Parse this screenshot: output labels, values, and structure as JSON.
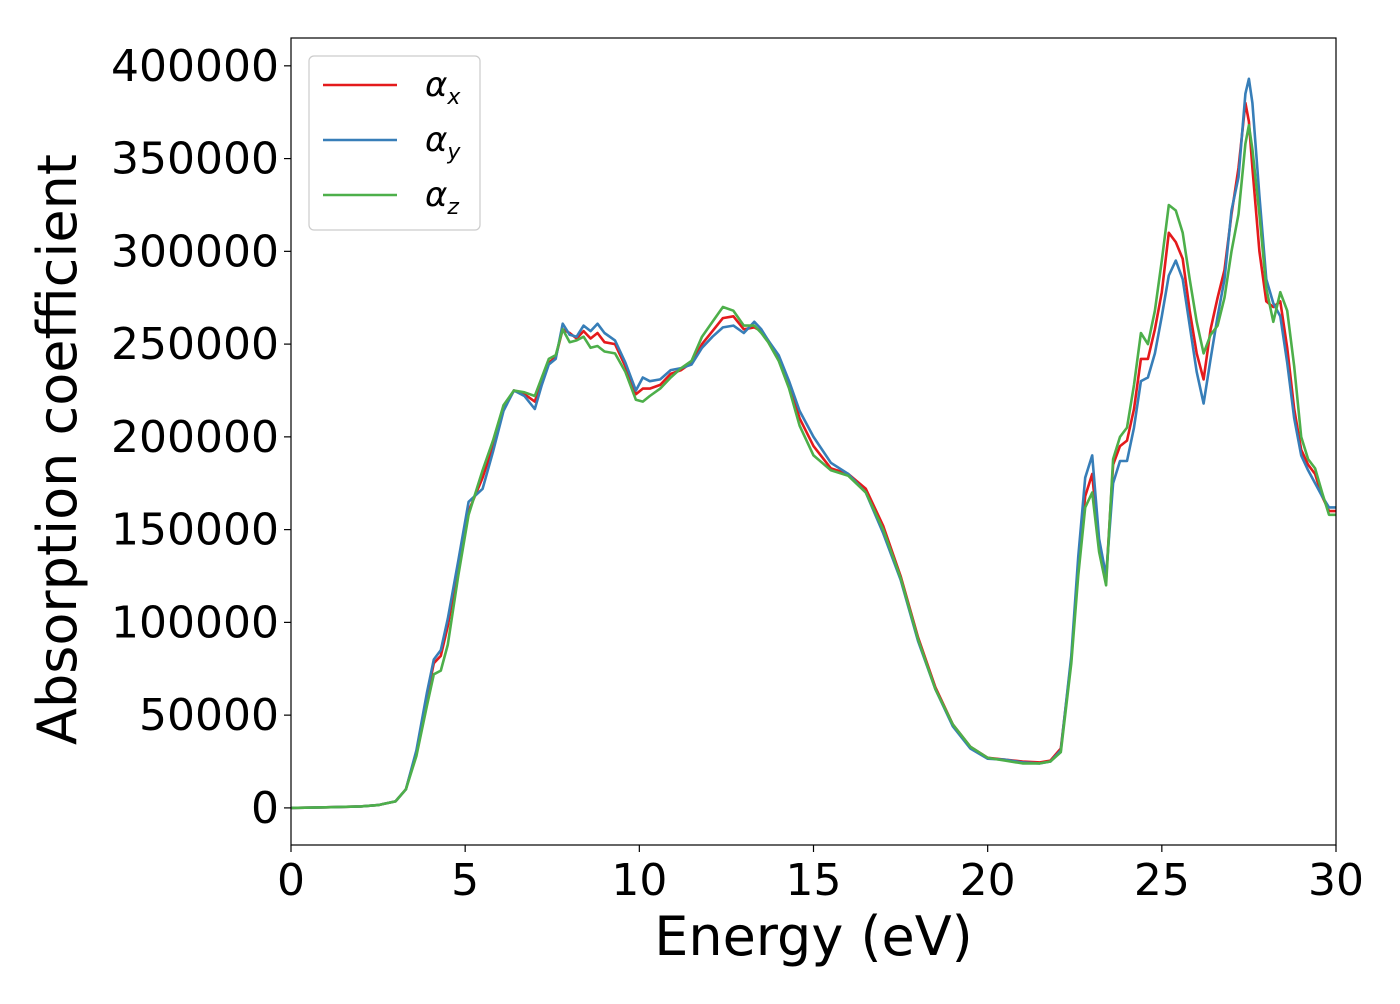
{
  "chart_data": {
    "type": "line",
    "title": "",
    "xlabel": "Energy (eV)",
    "ylabel": "Absorption coefficient",
    "xlim": [
      0,
      30
    ],
    "ylim": [
      -20000,
      415000
    ],
    "x_ticks": [
      0,
      5,
      10,
      15,
      20,
      25,
      30
    ],
    "y_ticks": [
      0,
      50000,
      100000,
      150000,
      200000,
      250000,
      300000,
      350000,
      400000
    ],
    "grid": false,
    "legend_position": "top-left",
    "series": [
      {
        "name": "α_x",
        "color": "#e41a1c",
        "x": [
          0,
          1,
          2,
          2.5,
          3,
          3.3,
          3.6,
          3.9,
          4.1,
          4.3,
          4.5,
          4.8,
          5.1,
          5.5,
          5.8,
          6.1,
          6.4,
          6.7,
          7.0,
          7.2,
          7.4,
          7.6,
          7.8,
          8.0,
          8.2,
          8.4,
          8.6,
          8.8,
          9.0,
          9.3,
          9.6,
          9.9,
          10.1,
          10.3,
          10.6,
          10.9,
          11.2,
          11.5,
          11.8,
          12.1,
          12.4,
          12.7,
          13.0,
          13.3,
          13.5,
          13.7,
          14.0,
          14.3,
          14.6,
          15.0,
          15.5,
          16.0,
          16.5,
          17.0,
          17.5,
          18.0,
          18.5,
          19.0,
          19.5,
          20.0,
          20.5,
          21.0,
          21.5,
          21.8,
          22.1,
          22.4,
          22.6,
          22.8,
          23.0,
          23.2,
          23.4,
          23.6,
          23.8,
          24.0,
          24.2,
          24.4,
          24.6,
          24.8,
          25.0,
          25.2,
          25.4,
          25.6,
          25.8,
          26.0,
          26.2,
          26.4,
          26.6,
          26.8,
          27.0,
          27.2,
          27.4,
          27.5,
          27.6,
          27.8,
          28.0,
          28.2,
          28.4,
          28.6,
          28.8,
          29.0,
          29.2,
          29.4,
          29.6,
          29.8,
          30.0
        ],
        "y": [
          0,
          300,
          800,
          1500,
          3500,
          10000,
          30000,
          60000,
          78000,
          82000,
          98000,
          130000,
          160000,
          178000,
          195000,
          215000,
          225000,
          223000,
          219000,
          230000,
          240000,
          243000,
          258000,
          256000,
          253000,
          257000,
          253000,
          256000,
          251000,
          250000,
          238000,
          223000,
          226000,
          226000,
          228000,
          234000,
          236000,
          240000,
          250000,
          257000,
          264000,
          265000,
          258000,
          259000,
          257000,
          252000,
          242000,
          228000,
          210000,
          195000,
          183000,
          180000,
          172000,
          152000,
          125000,
          92000,
          65000,
          45000,
          33000,
          27000,
          26000,
          25000,
          24500,
          25500,
          32000,
          80000,
          130000,
          168000,
          180000,
          140000,
          123000,
          185000,
          195000,
          198000,
          215000,
          242000,
          242000,
          258000,
          278000,
          310000,
          305000,
          296000,
          268000,
          245000,
          231000,
          258000,
          275000,
          290000,
          320000,
          345000,
          380000,
          370000,
          345000,
          300000,
          273000,
          270000,
          273000,
          248000,
          215000,
          193000,
          185000,
          180000,
          168000,
          160000,
          160000
        ]
      },
      {
        "name": "α_y",
        "color": "#377eb8",
        "x": [
          0,
          1,
          2,
          2.5,
          3,
          3.3,
          3.6,
          3.9,
          4.1,
          4.3,
          4.5,
          4.8,
          5.1,
          5.5,
          5.8,
          6.1,
          6.4,
          6.7,
          7.0,
          7.2,
          7.4,
          7.6,
          7.8,
          8.0,
          8.2,
          8.4,
          8.6,
          8.8,
          9.0,
          9.3,
          9.6,
          9.9,
          10.1,
          10.3,
          10.6,
          10.9,
          11.2,
          11.5,
          11.8,
          12.1,
          12.4,
          12.7,
          13.0,
          13.3,
          13.5,
          13.7,
          14.0,
          14.3,
          14.6,
          15.0,
          15.5,
          16.0,
          16.5,
          17.0,
          17.5,
          18.0,
          18.5,
          19.0,
          19.5,
          20.0,
          20.5,
          21.0,
          21.5,
          21.8,
          22.1,
          22.4,
          22.6,
          22.8,
          23.0,
          23.2,
          23.4,
          23.6,
          23.8,
          24.0,
          24.2,
          24.4,
          24.6,
          24.8,
          25.0,
          25.2,
          25.4,
          25.6,
          25.8,
          26.0,
          26.2,
          26.4,
          26.6,
          26.8,
          27.0,
          27.2,
          27.4,
          27.5,
          27.6,
          27.8,
          28.0,
          28.2,
          28.4,
          28.6,
          28.8,
          29.0,
          29.2,
          29.4,
          29.6,
          29.8,
          30.0
        ],
        "y": [
          0,
          300,
          800,
          1500,
          3500,
          10000,
          31000,
          62000,
          80000,
          85000,
          102000,
          133000,
          165000,
          172000,
          192000,
          214000,
          225000,
          222000,
          215000,
          228000,
          239000,
          242000,
          261000,
          255000,
          254000,
          260000,
          257000,
          261000,
          256000,
          252000,
          240000,
          225000,
          232000,
          230000,
          231000,
          236000,
          237000,
          239000,
          248000,
          254000,
          259000,
          260000,
          256000,
          262000,
          258000,
          252000,
          244000,
          230000,
          214000,
          200000,
          186000,
          180000,
          170000,
          148000,
          123000,
          90000,
          64000,
          44000,
          32000,
          26500,
          26000,
          24500,
          24000,
          25000,
          31000,
          82000,
          135000,
          178000,
          190000,
          145000,
          125000,
          175000,
          187000,
          187000,
          205000,
          230000,
          232000,
          245000,
          265000,
          287000,
          295000,
          285000,
          260000,
          235000,
          218000,
          242000,
          265000,
          285000,
          322000,
          340000,
          385000,
          393000,
          380000,
          330000,
          285000,
          272000,
          265000,
          240000,
          210000,
          190000,
          182000,
          175000,
          168000,
          162000,
          162000
        ]
      },
      {
        "name": "α_z",
        "color": "#4daf4a",
        "x": [
          0,
          1,
          2,
          2.5,
          3,
          3.3,
          3.6,
          3.9,
          4.1,
          4.3,
          4.5,
          4.8,
          5.1,
          5.5,
          5.8,
          6.1,
          6.4,
          6.7,
          7.0,
          7.2,
          7.4,
          7.6,
          7.8,
          8.0,
          8.2,
          8.4,
          8.6,
          8.8,
          9.0,
          9.3,
          9.6,
          9.9,
          10.1,
          10.3,
          10.6,
          10.9,
          11.2,
          11.5,
          11.8,
          12.1,
          12.4,
          12.7,
          13.0,
          13.3,
          13.5,
          13.7,
          14.0,
          14.3,
          14.6,
          15.0,
          15.5,
          16.0,
          16.5,
          17.0,
          17.5,
          18.0,
          18.5,
          19.0,
          19.5,
          20.0,
          20.5,
          21.0,
          21.5,
          21.8,
          22.1,
          22.4,
          22.6,
          22.8,
          23.0,
          23.2,
          23.4,
          23.6,
          23.8,
          24.0,
          24.2,
          24.4,
          24.6,
          24.8,
          25.0,
          25.2,
          25.4,
          25.6,
          25.8,
          26.0,
          26.2,
          26.4,
          26.6,
          26.8,
          27.0,
          27.2,
          27.4,
          27.5,
          27.6,
          27.8,
          28.0,
          28.2,
          28.4,
          28.6,
          28.8,
          29.0,
          29.2,
          29.4,
          29.6,
          29.8,
          30.0
        ],
        "y": [
          0,
          300,
          800,
          1500,
          3500,
          10000,
          28000,
          55000,
          72000,
          74000,
          88000,
          125000,
          158000,
          182000,
          198000,
          217000,
          225000,
          224000,
          222000,
          232000,
          242000,
          244000,
          258000,
          251000,
          252000,
          254000,
          248000,
          249000,
          246000,
          245000,
          235000,
          220000,
          219000,
          222000,
          226000,
          232000,
          237000,
          241000,
          254000,
          262000,
          270000,
          268000,
          260000,
          260000,
          256000,
          251000,
          241000,
          226000,
          206000,
          190000,
          182000,
          179000,
          170000,
          150000,
          124000,
          91000,
          64000,
          45000,
          33000,
          27000,
          25500,
          24000,
          24000,
          25000,
          30000,
          78000,
          125000,
          162000,
          170000,
          138000,
          120000,
          188000,
          200000,
          205000,
          228000,
          256000,
          250000,
          268000,
          295000,
          325000,
          322000,
          310000,
          285000,
          262000,
          245000,
          255000,
          260000,
          275000,
          300000,
          320000,
          358000,
          368000,
          355000,
          320000,
          280000,
          262000,
          278000,
          268000,
          238000,
          200000,
          188000,
          183000,
          170000,
          158000,
          158000
        ]
      }
    ]
  }
}
